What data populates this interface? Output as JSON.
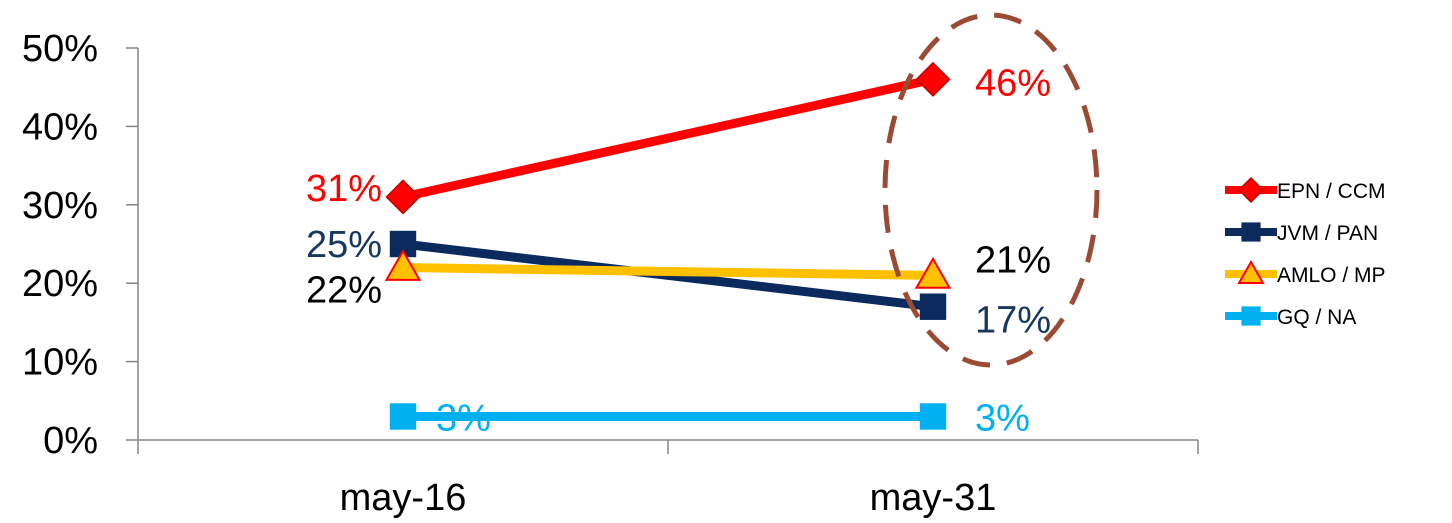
{
  "chart_data": {
    "type": "line",
    "categories": [
      "may-16",
      "may-31"
    ],
    "ylim": [
      0,
      50
    ],
    "yticks": [
      "0%",
      "10%",
      "20%",
      "30%",
      "40%",
      "50%"
    ],
    "grid": false,
    "legend_position": "right",
    "series": [
      {
        "name": "EPN / CCM",
        "values": [
          31,
          46
        ],
        "labels": [
          "31%",
          "46%"
        ],
        "color": "#ff0000",
        "label_color": "#ff0000",
        "marker": "diamond"
      },
      {
        "name": "JVM / PAN",
        "values": [
          25,
          17
        ],
        "labels": [
          "25%",
          "17%"
        ],
        "color": "#0b2a5e",
        "label_color": "#17375e",
        "marker": "square"
      },
      {
        "name": "AMLO / MP",
        "values": [
          22,
          21
        ],
        "labels": [
          "22%",
          "21%"
        ],
        "color": "#ffc000",
        "label_color": "#000000",
        "marker": "triangle"
      },
      {
        "name": "GQ / NA",
        "values": [
          3,
          3
        ],
        "labels": [
          "3%",
          "3%"
        ],
        "color": "#00b0f0",
        "label_color": "#00b0f0",
        "marker": "square"
      }
    ],
    "highlight": {
      "shape": "dashed-ellipse",
      "color": "#9b4b34",
      "target": "may-31"
    }
  }
}
